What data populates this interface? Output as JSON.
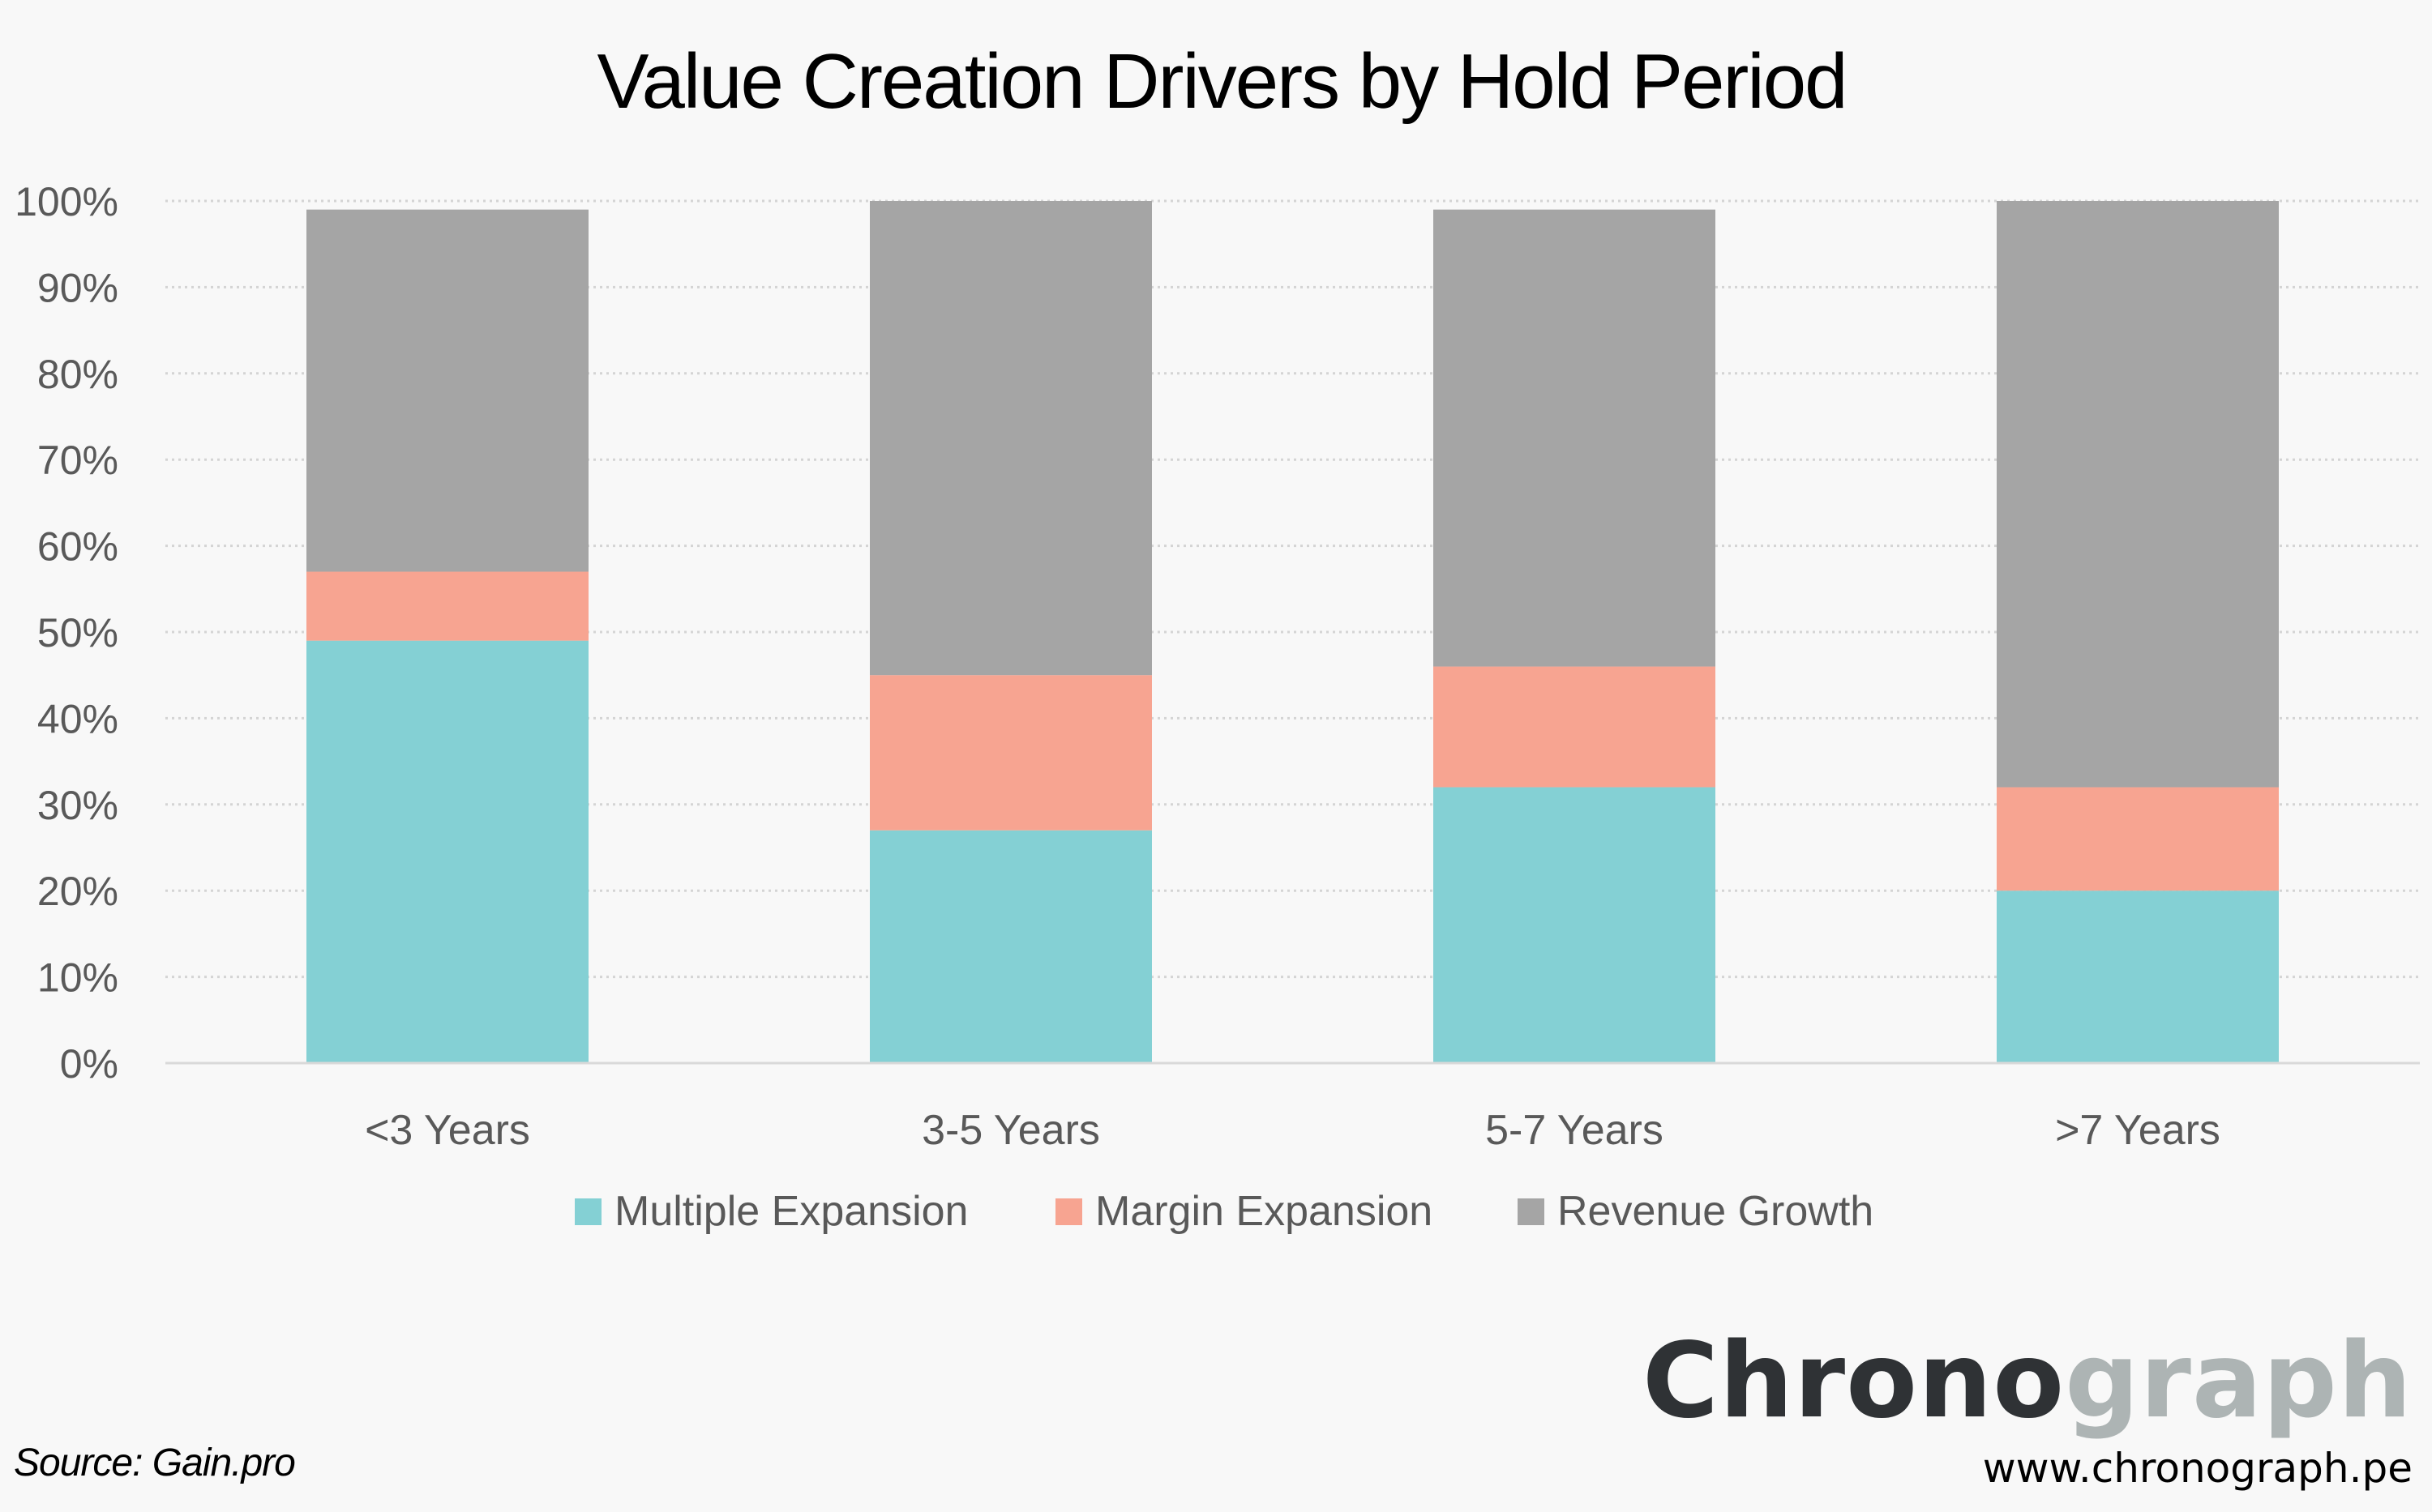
{
  "chart_data": {
    "type": "bar",
    "stacked": true,
    "title": "Value Creation Drivers by Hold Period",
    "xlabel": "",
    "ylabel": "",
    "categories": [
      "<3 Years",
      "3-5 Years",
      "5-7 Years",
      ">7 Years"
    ],
    "series": [
      {
        "name": "Multiple Expansion",
        "color": "#84d0d4",
        "values": [
          49,
          27,
          32,
          20
        ]
      },
      {
        "name": "Margin Expansion",
        "color": "#f7a491",
        "values": [
          8,
          18,
          14,
          12
        ]
      },
      {
        "name": "Revenue Growth",
        "color": "#a5a5a5",
        "values": [
          42,
          55,
          53,
          68
        ]
      }
    ],
    "ylim": [
      0,
      100
    ],
    "yticks": [
      0,
      10,
      20,
      30,
      40,
      50,
      60,
      70,
      80,
      90,
      100
    ],
    "ytick_labels": [
      "0%",
      "10%",
      "20%",
      "30%",
      "40%",
      "50%",
      "60%",
      "70%",
      "80%",
      "90%",
      "100%"
    ],
    "grid": true,
    "legend_position": "bottom"
  },
  "footer": {
    "source": "Source: Gain.pro",
    "brand_dark": "Chrono",
    "brand_light": "graph",
    "url": "www.chronograph.pe"
  }
}
